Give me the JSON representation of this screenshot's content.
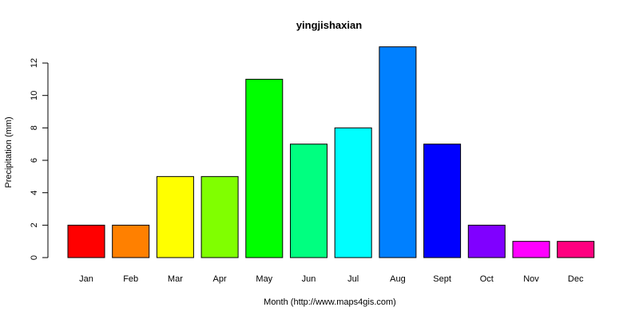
{
  "chart_data": {
    "type": "bar",
    "title": "yingjishaxian",
    "xlabel": "Month (http://www.maps4gis.com)",
    "ylabel": "Precipitation (mm)",
    "categories": [
      "Jan",
      "Feb",
      "Mar",
      "Apr",
      "May",
      "Jun",
      "Jul",
      "Aug",
      "Sept",
      "Oct",
      "Nov",
      "Dec"
    ],
    "values": [
      2,
      2,
      5,
      5,
      11,
      7,
      8,
      13,
      7,
      2,
      1,
      1
    ],
    "colors": [
      "#FF0000",
      "#FF8000",
      "#FFFF00",
      "#80FF00",
      "#00FF00",
      "#00FF80",
      "#00FFFF",
      "#0080FF",
      "#0000FF",
      "#8000FF",
      "#FF00FF",
      "#FF0080"
    ],
    "yticks": [
      0,
      2,
      4,
      6,
      8,
      10,
      12
    ],
    "ylim": [
      0,
      13
    ],
    "grid": false,
    "legend": "none"
  }
}
